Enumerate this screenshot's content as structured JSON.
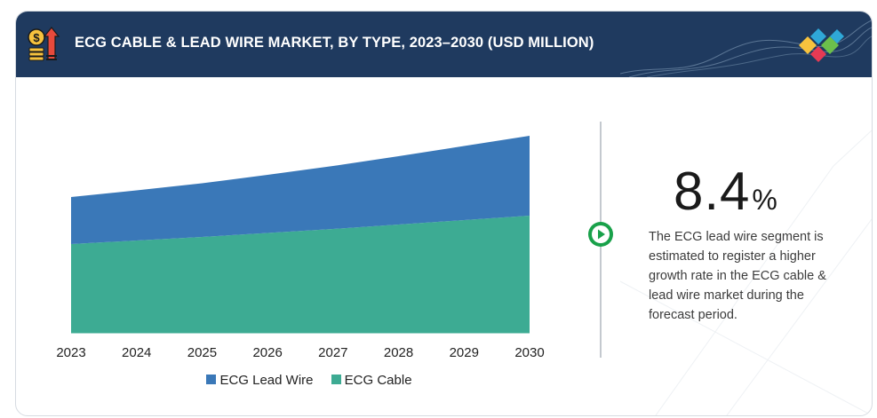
{
  "header": {
    "title": "ECG CABLE & LEAD WIRE MARKET, BY TYPE, 2023–2030 (USD MILLION)",
    "icon": "money-growth-icon",
    "logo": "brand-diamond-logo"
  },
  "colors": {
    "header_bg": "#1f3a5f",
    "lead_wire": "#3a78b8",
    "cable": "#3dab93",
    "accent_green": "#19a14a",
    "logo_colors": [
      "#f6c23e",
      "#2fa8d8",
      "#e63a54",
      "#6cbf4b"
    ]
  },
  "stat": {
    "value": "8.4",
    "unit": "%",
    "description": "The ECG lead wire segment is estimated to register a higher growth rate in the ECG cable & lead wire market during the forecast period."
  },
  "play_icon": "play-icon",
  "chart_data": {
    "type": "area",
    "stacked": true,
    "x": [
      "2023",
      "2024",
      "2025",
      "2026",
      "2027",
      "2028",
      "2029",
      "2030"
    ],
    "series": [
      {
        "name": "ECG Cable",
        "values": [
          100,
          104,
          108,
          112.5,
          117,
          122,
          127,
          132
        ]
      },
      {
        "name": "ECG Lead Wire",
        "values": [
          53,
          56.5,
          60.5,
          65.5,
          71,
          77,
          83.5,
          90
        ]
      }
    ],
    "ylim": [
      0,
      240
    ],
    "grid": false,
    "legend_position": "bottom-center",
    "title": "",
    "xlabel": "",
    "ylabel": ""
  }
}
